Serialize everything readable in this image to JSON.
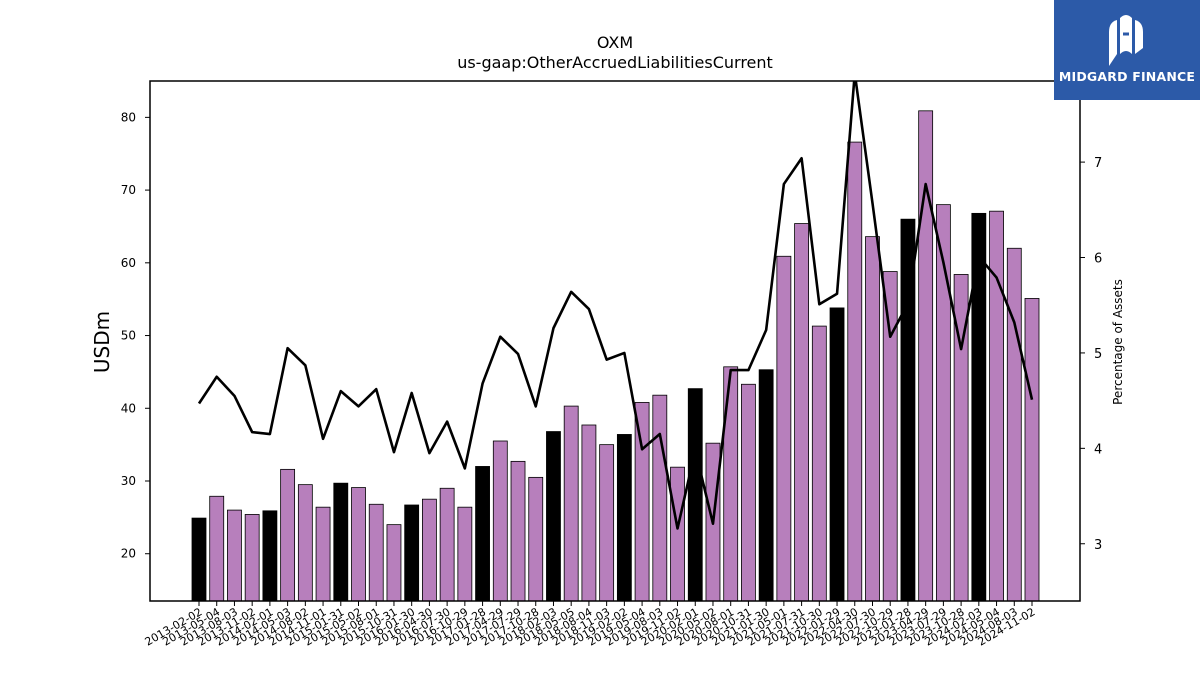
{
  "chart_data": {
    "type": "bar",
    "title": "OXM",
    "subtitle": "us-gaap:OtherAccruedLiabilitiesCurrent",
    "ylabel": "USDm",
    "y2label": "Percentage of Assets",
    "ylim": [
      13.5,
      85
    ],
    "y2lim": [
      2.4,
      7.85
    ],
    "yticks": [
      20,
      30,
      40,
      50,
      60,
      70,
      80
    ],
    "y2ticks": [
      3,
      4,
      5,
      6,
      7
    ],
    "bar_color": "#b77fbc",
    "highlight_color": "#000000",
    "line_color": "#000000",
    "categories": [
      "2013-02-02",
      "2013-05-04",
      "2013-08-03",
      "2013-11-02",
      "2014-02-01",
      "2014-05-03",
      "2014-08-02",
      "2014-11-01",
      "2015-01-31",
      "2015-05-02",
      "2015-08-01",
      "2015-10-31",
      "2016-01-30",
      "2016-04-30",
      "2016-07-30",
      "2016-10-29",
      "2017-01-28",
      "2017-04-29",
      "2017-07-29",
      "2017-10-28",
      "2018-02-03",
      "2018-05-05",
      "2018-08-04",
      "2018-11-03",
      "2019-02-02",
      "2019-05-04",
      "2019-08-03",
      "2019-11-02",
      "2020-02-01",
      "2020-05-02",
      "2020-08-01",
      "2020-10-31",
      "2021-01-30",
      "2021-05-01",
      "2021-07-31",
      "2021-10-30",
      "2022-01-29",
      "2022-04-30",
      "2022-07-30",
      "2022-10-29",
      "2023-01-28",
      "2023-04-29",
      "2023-07-29",
      "2023-10-28",
      "2024-02-03",
      "2024-05-04",
      "2024-08-03",
      "2024-11-02"
    ],
    "values": [
      24.9,
      27.9,
      26.0,
      25.4,
      25.9,
      31.6,
      29.5,
      26.4,
      29.7,
      29.1,
      26.8,
      24.0,
      26.7,
      27.5,
      29.0,
      26.4,
      32.0,
      35.5,
      32.7,
      30.5,
      36.8,
      40.3,
      37.7,
      35.0,
      36.4,
      40.8,
      41.8,
      31.9,
      42.7,
      35.2,
      45.7,
      43.3,
      45.3,
      60.9,
      65.4,
      51.3,
      53.8,
      76.6,
      63.6,
      58.8,
      66.0,
      80.9,
      68.0,
      58.4,
      66.8,
      67.1,
      62.0,
      55.1
    ],
    "highlight": [
      true,
      false,
      false,
      false,
      true,
      false,
      false,
      false,
      true,
      false,
      false,
      false,
      true,
      false,
      false,
      false,
      true,
      false,
      false,
      false,
      true,
      false,
      false,
      false,
      true,
      false,
      false,
      false,
      true,
      false,
      false,
      false,
      true,
      false,
      false,
      false,
      true,
      false,
      false,
      false,
      true,
      false,
      false,
      false,
      true,
      false,
      false,
      false
    ],
    "pct_of_assets": [
      4.47,
      4.75,
      4.55,
      4.17,
      4.15,
      5.05,
      4.87,
      4.1,
      4.6,
      4.44,
      4.62,
      3.96,
      4.58,
      3.95,
      4.28,
      3.79,
      4.68,
      5.17,
      4.99,
      4.44,
      5.26,
      5.64,
      5.46,
      4.93,
      5.0,
      3.99,
      4.15,
      3.16,
      3.98,
      3.21,
      4.82,
      4.82,
      5.24,
      6.77,
      7.04,
      5.51,
      5.62,
      7.93,
      6.57,
      5.17,
      5.52,
      6.77,
      5.95,
      5.04,
      6.01,
      5.79,
      5.32,
      4.51
    ]
  },
  "logo": {
    "text": "MIDGARD FINANCE",
    "bg_color": "#2c5aa8",
    "icon": "midgard-logo-icon"
  }
}
